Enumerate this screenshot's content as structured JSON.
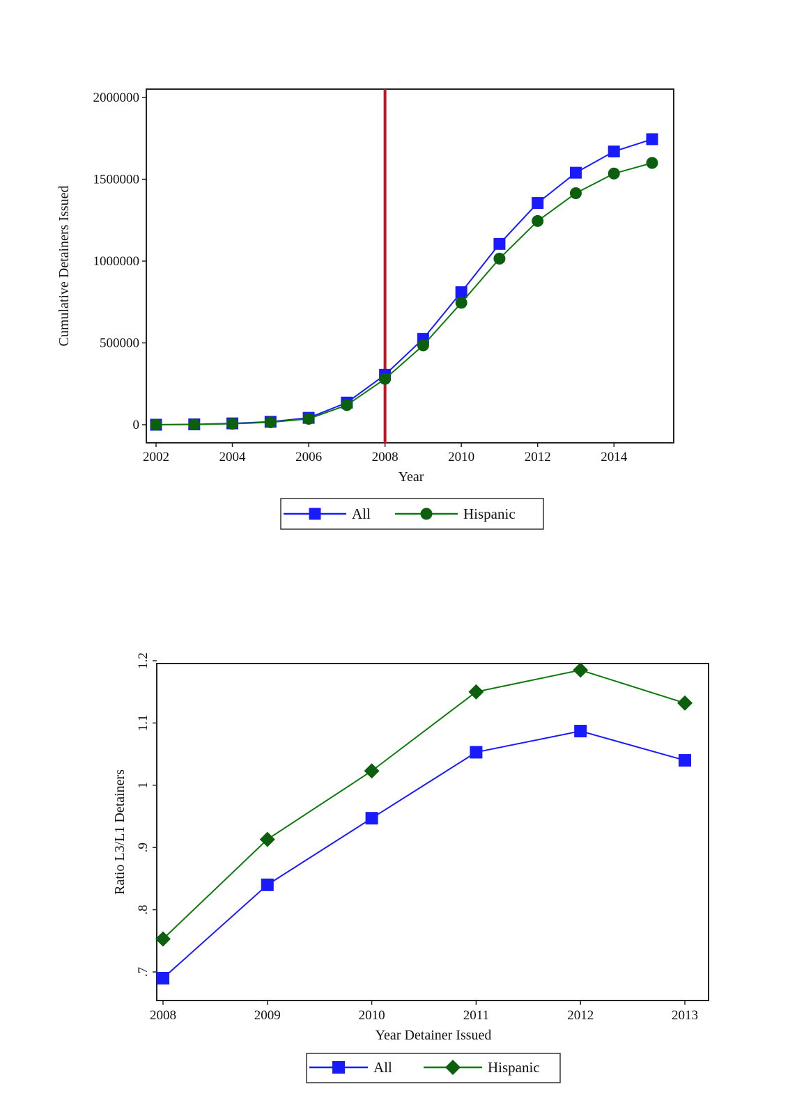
{
  "colors": {
    "all": "#1a1aff",
    "hispanic": "#0e7a0e",
    "marker_hispanic": "#0c5f0c",
    "vline": "#cc1122",
    "frame": "#222222"
  },
  "chart_data": [
    {
      "type": "line",
      "xlabel": "Year",
      "ylabel": "Cumulative Detainers Issued",
      "xlim": [
        2002,
        2015
      ],
      "ylim": [
        0,
        2000000
      ],
      "x_ticks": [
        2002,
        2004,
        2006,
        2008,
        2010,
        2012,
        2014
      ],
      "y_ticks": [
        0,
        500000,
        1000000,
        1500000,
        2000000
      ],
      "x_tick_labels": [
        "2002",
        "2004",
        "2006",
        "2008",
        "2010",
        "2012",
        "2014"
      ],
      "y_tick_labels": [
        "0",
        "500000",
        "1000000",
        "1500000",
        "2000000"
      ],
      "vertical_line_x": 2008,
      "grid": false,
      "legend_position": "bottom",
      "x": [
        2002,
        2003,
        2004,
        2005,
        2006,
        2007,
        2008,
        2009,
        2010,
        2011,
        2012,
        2013,
        2014,
        2015
      ],
      "series": [
        {
          "name": "All",
          "marker": "square",
          "color_key": "all",
          "values": [
            0,
            2000,
            8000,
            18000,
            42000,
            135000,
            305000,
            525000,
            810000,
            1105000,
            1355000,
            1540000,
            1670000,
            1745000
          ]
        },
        {
          "name": "Hispanic",
          "marker": "circle",
          "color_key": "hispanic",
          "values": [
            0,
            1500,
            6000,
            15000,
            36000,
            120000,
            280000,
            485000,
            745000,
            1015000,
            1245000,
            1415000,
            1535000,
            1600000
          ]
        }
      ]
    },
    {
      "type": "line",
      "xlabel": "Year Detainer Issued",
      "ylabel": "Ratio L3/L1 Detainers",
      "xlim": [
        2008,
        2013
      ],
      "ylim": [
        0.7,
        1.2
      ],
      "x_ticks": [
        2008,
        2009,
        2010,
        2011,
        2012,
        2013
      ],
      "y_ticks": [
        0.7,
        0.8,
        0.9,
        1.0,
        1.1,
        1.2
      ],
      "x_tick_labels": [
        "2008",
        "2009",
        "2010",
        "2011",
        "2012",
        "2013"
      ],
      "y_tick_labels": [
        ".7",
        ".8",
        ".9",
        "1",
        "1.1",
        "1.2"
      ],
      "grid": false,
      "legend_position": "bottom",
      "x": [
        2008,
        2009,
        2010,
        2011,
        2012,
        2013
      ],
      "series": [
        {
          "name": "All",
          "marker": "square",
          "color_key": "all",
          "values": [
            0.69,
            0.84,
            0.947,
            1.053,
            1.087,
            1.04
          ]
        },
        {
          "name": "Hispanic",
          "marker": "diamond",
          "color_key": "hispanic",
          "values": [
            0.753,
            0.913,
            1.023,
            1.15,
            1.185,
            1.132
          ]
        }
      ]
    }
  ]
}
